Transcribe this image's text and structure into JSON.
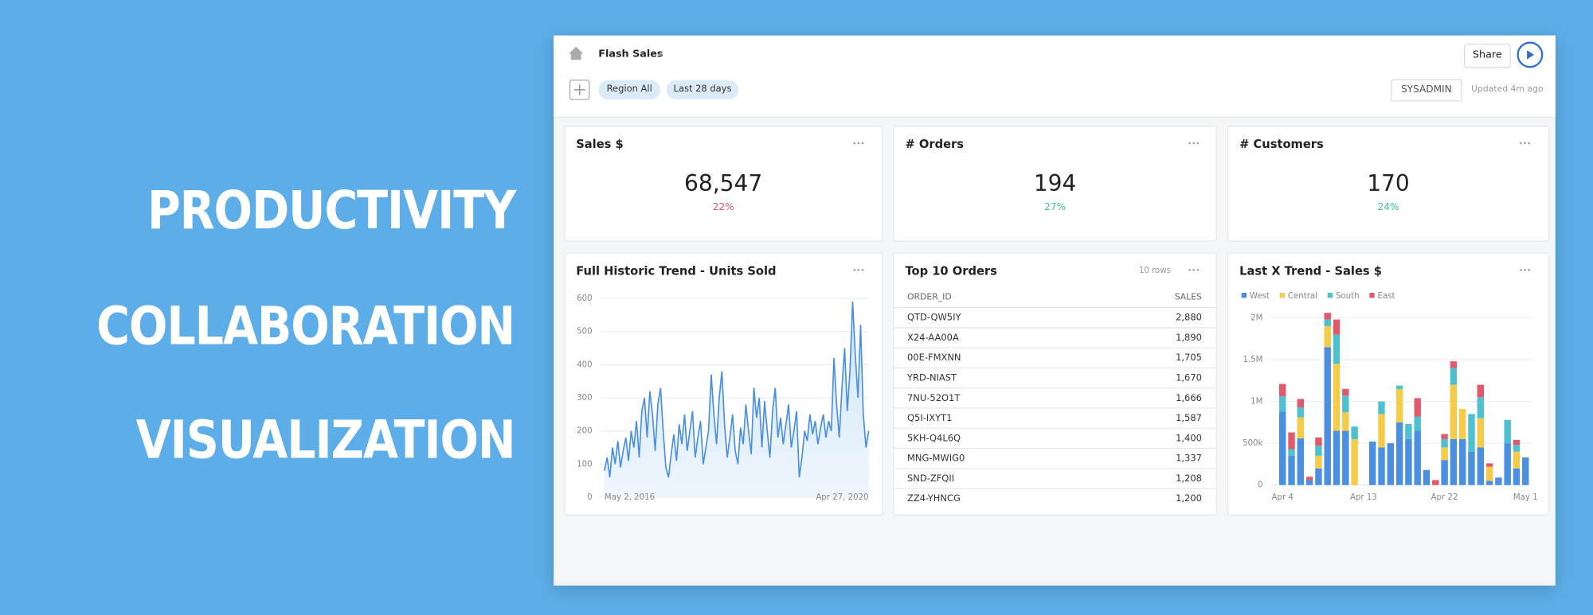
{
  "headlines": [
    "PRODUCTIVITY",
    "COLLABORATION",
    "VISUALIZATION"
  ],
  "dashboard": {
    "title": "Flash Sales",
    "filters": [
      "Region All",
      "Last 28 days"
    ],
    "share": "Share",
    "user": "SYSADMIN",
    "updated": "Updated 4m ago"
  },
  "kpis": [
    {
      "title": "Sales $",
      "value": "68,547",
      "delta": "22%",
      "delta_color": "#e0566a"
    },
    {
      "title": "# Orders",
      "value": "194",
      "delta": "27%",
      "delta_color": "#3cc3a0"
    },
    {
      "title": "# Customers",
      "value": "170",
      "delta": "24%",
      "delta_color": "#3cc3a0"
    }
  ],
  "table": {
    "title": "Top 10 Orders",
    "note": "10 rows",
    "columns": [
      "ORDER_ID",
      "SALES"
    ],
    "rows": [
      [
        "QTD-QW5IY",
        "2,880"
      ],
      [
        "X24-AA00A",
        "1,890"
      ],
      [
        "00E-FMXNN",
        "1,705"
      ],
      [
        "YRD-NIAST",
        "1,670"
      ],
      [
        "7NU-52O1T",
        "1,666"
      ],
      [
        "Q5I-IXYT1",
        "1,587"
      ],
      [
        "5KH-Q4L6Q",
        "1,400"
      ],
      [
        "MNG-MWIG0",
        "1,337"
      ],
      [
        "SND-ZFQII",
        "1,208"
      ],
      [
        "ZZ4-YHNCG",
        "1,200"
      ]
    ]
  },
  "chart_data": [
    {
      "type": "line",
      "title": "Full Historic Trend - Units Sold",
      "color": "#4a8fe0",
      "area": true,
      "grid": true,
      "categories": [
        "May 2, 2016",
        null,
        null,
        null,
        null,
        null,
        null,
        null,
        null,
        null,
        null,
        null,
        null,
        null,
        null,
        null,
        null,
        null,
        null,
        null,
        null,
        null,
        null,
        null,
        null,
        null,
        null,
        null,
        null,
        null,
        null,
        null,
        null,
        null,
        null,
        null,
        null,
        null,
        null,
        null,
        null,
        null,
        null,
        null,
        null,
        null,
        null,
        null,
        null,
        null,
        null,
        null,
        null,
        null,
        null,
        null,
        null,
        null,
        null,
        null,
        null,
        null,
        null,
        null,
        null,
        null,
        null,
        null,
        null,
        null,
        null,
        null,
        null,
        null,
        null,
        null,
        null,
        null,
        null,
        null,
        null,
        null,
        null,
        null,
        null,
        null,
        null,
        null,
        null,
        null,
        null,
        null,
        null,
        null,
        null,
        null,
        null,
        null,
        null,
        "Apr 27, 2020"
      ],
      "values": [
        80,
        120,
        60,
        150,
        100,
        170,
        90,
        140,
        180,
        110,
        200,
        150,
        230,
        120,
        260,
        300,
        180,
        320,
        250,
        140,
        280,
        330,
        200,
        90,
        60,
        130,
        190,
        110,
        220,
        160,
        250,
        140,
        200,
        260,
        120,
        180,
        230,
        100,
        150,
        200,
        370,
        250,
        160,
        300,
        380,
        220,
        120,
        180,
        250,
        140,
        100,
        210,
        160,
        280,
        200,
        130,
        330,
        240,
        300,
        150,
        290,
        200,
        120,
        260,
        330,
        180,
        240,
        160,
        220,
        280,
        150,
        200,
        260,
        60,
        120,
        200,
        170,
        250,
        190,
        230,
        160,
        210,
        250,
        180,
        230,
        200,
        420,
        280,
        180,
        330,
        450,
        260,
        380,
        590,
        430,
        300,
        520,
        250,
        150,
        200
      ],
      "ylim": [
        0,
        600
      ],
      "yticks": [
        0,
        100,
        200,
        300,
        400,
        500,
        600
      ]
    },
    {
      "type": "bar",
      "stacked": true,
      "title": "Last X Trend - Sales $",
      "grid": true,
      "legend": "top-left",
      "categories": [
        "Apr 4",
        null,
        null,
        null,
        null,
        null,
        null,
        null,
        null,
        "Apr 13",
        null,
        null,
        null,
        null,
        null,
        null,
        null,
        null,
        "Apr 22",
        null,
        null,
        null,
        null,
        null,
        null,
        null,
        null,
        "May 1"
      ],
      "series": [
        {
          "name": "West",
          "color": "#4a8fe0",
          "values": [
            880000,
            350000,
            560000,
            60000,
            200000,
            1650000,
            650000,
            650000,
            0,
            0,
            520000,
            450000,
            500000,
            750000,
            550000,
            650000,
            180000,
            0,
            300000,
            550000,
            550000,
            400000,
            450000,
            50000,
            90000,
            500000,
            200000,
            330000
          ]
        },
        {
          "name": "Central",
          "color": "#f5cb4a",
          "values": [
            0,
            0,
            250000,
            0,
            150000,
            250000,
            800000,
            220000,
            550000,
            0,
            0,
            400000,
            0,
            400000,
            0,
            0,
            0,
            0,
            150000,
            650000,
            360000,
            0,
            350000,
            170000,
            0,
            0,
            200000,
            0
          ]
        },
        {
          "name": "South",
          "color": "#4fc0cf",
          "values": [
            180000,
            80000,
            120000,
            0,
            120000,
            80000,
            350000,
            200000,
            150000,
            0,
            0,
            150000,
            0,
            40000,
            180000,
            170000,
            0,
            0,
            100000,
            200000,
            0,
            450000,
            250000,
            0,
            0,
            280000,
            80000,
            0
          ]
        },
        {
          "name": "East",
          "color": "#e05a6b",
          "values": [
            150000,
            200000,
            100000,
            40000,
            100000,
            80000,
            180000,
            80000,
            0,
            0,
            0,
            0,
            0,
            0,
            0,
            220000,
            0,
            60000,
            60000,
            80000,
            0,
            0,
            150000,
            40000,
            0,
            0,
            60000,
            0
          ]
        }
      ],
      "ylim": [
        0,
        2100000
      ],
      "yticks": [
        0,
        {
          "value": 500000,
          "label": "500k"
        },
        {
          "value": 1000000,
          "label": "1M"
        },
        {
          "value": 1500000,
          "label": "1.5M"
        },
        {
          "value": 2000000,
          "label": "2M"
        }
      ]
    }
  ]
}
